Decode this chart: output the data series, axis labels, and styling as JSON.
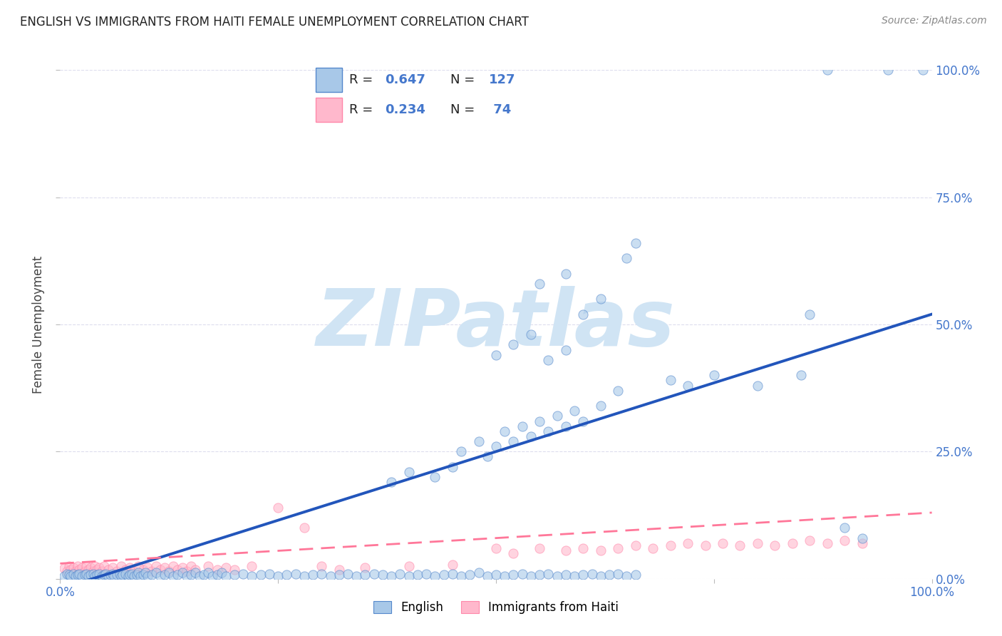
{
  "title": "ENGLISH VS IMMIGRANTS FROM HAITI FEMALE UNEMPLOYMENT CORRELATION CHART",
  "source": "Source: ZipAtlas.com",
  "ylabel": "Female Unemployment",
  "xlim": [
    0,
    1
  ],
  "ylim": [
    0,
    1
  ],
  "xticks": [
    0.0,
    0.25,
    0.5,
    0.75,
    1.0
  ],
  "xticklabels": [
    "0.0%",
    "",
    "",
    "",
    "100.0%"
  ],
  "yticks": [
    0.0,
    0.25,
    0.5,
    0.75,
    1.0
  ],
  "yticklabels_right": [
    "0.0%",
    "25.0%",
    "50.0%",
    "75.0%",
    "100.0%"
  ],
  "english_R": "0.647",
  "english_N": "127",
  "haiti_R": "0.234",
  "haiti_N": " 74",
  "english_scatter_color": "#A8C8E8",
  "english_edge_color": "#5588CC",
  "haiti_scatter_color": "#FFB8CC",
  "haiti_edge_color": "#FF88AA",
  "english_line_color": "#2255BB",
  "haiti_line_color": "#FF7799",
  "axis_tick_color": "#4477CC",
  "watermark_color": "#D0E4F4",
  "title_color": "#222222",
  "source_color": "#888888",
  "grid_color": "#DDDDEE",
  "english_line_x": [
    0.0,
    1.0
  ],
  "english_line_y": [
    -0.02,
    0.52
  ],
  "haiti_line_x": [
    0.0,
    1.0
  ],
  "haiti_line_y": [
    0.03,
    0.13
  ],
  "english_points": [
    [
      0.005,
      0.005
    ],
    [
      0.008,
      0.01
    ],
    [
      0.01,
      0.008
    ],
    [
      0.012,
      0.005
    ],
    [
      0.015,
      0.01
    ],
    [
      0.018,
      0.005
    ],
    [
      0.02,
      0.008
    ],
    [
      0.022,
      0.01
    ],
    [
      0.025,
      0.005
    ],
    [
      0.028,
      0.008
    ],
    [
      0.03,
      0.01
    ],
    [
      0.032,
      0.005
    ],
    [
      0.035,
      0.008
    ],
    [
      0.038,
      0.01
    ],
    [
      0.04,
      0.005
    ],
    [
      0.042,
      0.008
    ],
    [
      0.045,
      0.01
    ],
    [
      0.048,
      0.005
    ],
    [
      0.05,
      0.008
    ],
    [
      0.052,
      0.01
    ],
    [
      0.055,
      0.005
    ],
    [
      0.058,
      0.008
    ],
    [
      0.06,
      0.01
    ],
    [
      0.062,
      0.005
    ],
    [
      0.065,
      0.008
    ],
    [
      0.068,
      0.01
    ],
    [
      0.07,
      0.005
    ],
    [
      0.072,
      0.008
    ],
    [
      0.075,
      0.01
    ],
    [
      0.078,
      0.005
    ],
    [
      0.08,
      0.008
    ],
    [
      0.082,
      0.01
    ],
    [
      0.085,
      0.005
    ],
    [
      0.088,
      0.008
    ],
    [
      0.09,
      0.012
    ],
    [
      0.092,
      0.005
    ],
    [
      0.095,
      0.008
    ],
    [
      0.098,
      0.012
    ],
    [
      0.1,
      0.005
    ],
    [
      0.105,
      0.008
    ],
    [
      0.11,
      0.012
    ],
    [
      0.115,
      0.005
    ],
    [
      0.12,
      0.008
    ],
    [
      0.125,
      0.012
    ],
    [
      0.13,
      0.005
    ],
    [
      0.135,
      0.008
    ],
    [
      0.14,
      0.012
    ],
    [
      0.145,
      0.005
    ],
    [
      0.15,
      0.008
    ],
    [
      0.155,
      0.012
    ],
    [
      0.16,
      0.005
    ],
    [
      0.165,
      0.008
    ],
    [
      0.17,
      0.012
    ],
    [
      0.175,
      0.005
    ],
    [
      0.18,
      0.008
    ],
    [
      0.185,
      0.012
    ],
    [
      0.19,
      0.005
    ],
    [
      0.2,
      0.008
    ],
    [
      0.21,
      0.01
    ],
    [
      0.22,
      0.005
    ],
    [
      0.23,
      0.008
    ],
    [
      0.24,
      0.01
    ],
    [
      0.25,
      0.005
    ],
    [
      0.26,
      0.008
    ],
    [
      0.27,
      0.01
    ],
    [
      0.28,
      0.005
    ],
    [
      0.29,
      0.008
    ],
    [
      0.3,
      0.01
    ],
    [
      0.31,
      0.005
    ],
    [
      0.32,
      0.008
    ],
    [
      0.33,
      0.01
    ],
    [
      0.34,
      0.005
    ],
    [
      0.35,
      0.008
    ],
    [
      0.36,
      0.01
    ],
    [
      0.37,
      0.008
    ],
    [
      0.38,
      0.005
    ],
    [
      0.39,
      0.01
    ],
    [
      0.4,
      0.005
    ],
    [
      0.41,
      0.008
    ],
    [
      0.42,
      0.01
    ],
    [
      0.43,
      0.005
    ],
    [
      0.44,
      0.008
    ],
    [
      0.45,
      0.01
    ],
    [
      0.46,
      0.005
    ],
    [
      0.47,
      0.008
    ],
    [
      0.48,
      0.012
    ],
    [
      0.49,
      0.005
    ],
    [
      0.5,
      0.008
    ],
    [
      0.51,
      0.005
    ],
    [
      0.52,
      0.008
    ],
    [
      0.53,
      0.01
    ],
    [
      0.54,
      0.005
    ],
    [
      0.55,
      0.008
    ],
    [
      0.56,
      0.01
    ],
    [
      0.57,
      0.005
    ],
    [
      0.58,
      0.008
    ],
    [
      0.59,
      0.005
    ],
    [
      0.6,
      0.008
    ],
    [
      0.61,
      0.01
    ],
    [
      0.62,
      0.005
    ],
    [
      0.63,
      0.008
    ],
    [
      0.64,
      0.01
    ],
    [
      0.65,
      0.005
    ],
    [
      0.66,
      0.008
    ],
    [
      0.38,
      0.19
    ],
    [
      0.4,
      0.21
    ],
    [
      0.43,
      0.2
    ],
    [
      0.45,
      0.22
    ],
    [
      0.46,
      0.25
    ],
    [
      0.48,
      0.27
    ],
    [
      0.49,
      0.24
    ],
    [
      0.5,
      0.26
    ],
    [
      0.51,
      0.29
    ],
    [
      0.52,
      0.27
    ],
    [
      0.53,
      0.3
    ],
    [
      0.54,
      0.28
    ],
    [
      0.55,
      0.31
    ],
    [
      0.56,
      0.29
    ],
    [
      0.57,
      0.32
    ],
    [
      0.58,
      0.3
    ],
    [
      0.59,
      0.33
    ],
    [
      0.6,
      0.31
    ],
    [
      0.62,
      0.34
    ],
    [
      0.64,
      0.37
    ],
    [
      0.5,
      0.44
    ],
    [
      0.52,
      0.46
    ],
    [
      0.54,
      0.48
    ],
    [
      0.56,
      0.43
    ],
    [
      0.58,
      0.45
    ],
    [
      0.55,
      0.58
    ],
    [
      0.58,
      0.6
    ],
    [
      0.6,
      0.52
    ],
    [
      0.62,
      0.55
    ],
    [
      0.65,
      0.63
    ],
    [
      0.66,
      0.66
    ],
    [
      0.7,
      0.39
    ],
    [
      0.72,
      0.38
    ],
    [
      0.75,
      0.4
    ],
    [
      0.8,
      0.38
    ],
    [
      0.85,
      0.4
    ],
    [
      0.86,
      0.52
    ],
    [
      0.88,
      1.0
    ],
    [
      0.95,
      1.0
    ],
    [
      0.99,
      1.0
    ],
    [
      0.9,
      0.1
    ],
    [
      0.92,
      0.08
    ]
  ],
  "haiti_points": [
    [
      0.005,
      0.02
    ],
    [
      0.008,
      0.015
    ],
    [
      0.01,
      0.025
    ],
    [
      0.012,
      0.018
    ],
    [
      0.015,
      0.022
    ],
    [
      0.018,
      0.015
    ],
    [
      0.02,
      0.025
    ],
    [
      0.022,
      0.018
    ],
    [
      0.025,
      0.022
    ],
    [
      0.028,
      0.015
    ],
    [
      0.03,
      0.025
    ],
    [
      0.032,
      0.018
    ],
    [
      0.035,
      0.022
    ],
    [
      0.038,
      0.015
    ],
    [
      0.04,
      0.025
    ],
    [
      0.042,
      0.018
    ],
    [
      0.045,
      0.022
    ],
    [
      0.048,
      0.015
    ],
    [
      0.05,
      0.025
    ],
    [
      0.055,
      0.018
    ],
    [
      0.06,
      0.022
    ],
    [
      0.065,
      0.015
    ],
    [
      0.07,
      0.025
    ],
    [
      0.075,
      0.018
    ],
    [
      0.08,
      0.022
    ],
    [
      0.085,
      0.015
    ],
    [
      0.09,
      0.025
    ],
    [
      0.095,
      0.018
    ],
    [
      0.1,
      0.022
    ],
    [
      0.105,
      0.015
    ],
    [
      0.11,
      0.025
    ],
    [
      0.115,
      0.018
    ],
    [
      0.12,
      0.022
    ],
    [
      0.125,
      0.015
    ],
    [
      0.13,
      0.025
    ],
    [
      0.135,
      0.018
    ],
    [
      0.14,
      0.022
    ],
    [
      0.145,
      0.015
    ],
    [
      0.15,
      0.025
    ],
    [
      0.155,
      0.018
    ],
    [
      0.17,
      0.025
    ],
    [
      0.18,
      0.018
    ],
    [
      0.19,
      0.022
    ],
    [
      0.2,
      0.018
    ],
    [
      0.22,
      0.025
    ],
    [
      0.25,
      0.14
    ],
    [
      0.28,
      0.1
    ],
    [
      0.3,
      0.025
    ],
    [
      0.32,
      0.018
    ],
    [
      0.35,
      0.022
    ],
    [
      0.4,
      0.025
    ],
    [
      0.45,
      0.028
    ],
    [
      0.5,
      0.06
    ],
    [
      0.52,
      0.05
    ],
    [
      0.55,
      0.06
    ],
    [
      0.58,
      0.055
    ],
    [
      0.6,
      0.06
    ],
    [
      0.62,
      0.055
    ],
    [
      0.64,
      0.06
    ],
    [
      0.66,
      0.065
    ],
    [
      0.68,
      0.06
    ],
    [
      0.7,
      0.065
    ],
    [
      0.72,
      0.07
    ],
    [
      0.74,
      0.065
    ],
    [
      0.76,
      0.07
    ],
    [
      0.78,
      0.065
    ],
    [
      0.8,
      0.07
    ],
    [
      0.82,
      0.065
    ],
    [
      0.84,
      0.07
    ],
    [
      0.86,
      0.075
    ],
    [
      0.88,
      0.07
    ],
    [
      0.9,
      0.075
    ],
    [
      0.92,
      0.07
    ]
  ]
}
